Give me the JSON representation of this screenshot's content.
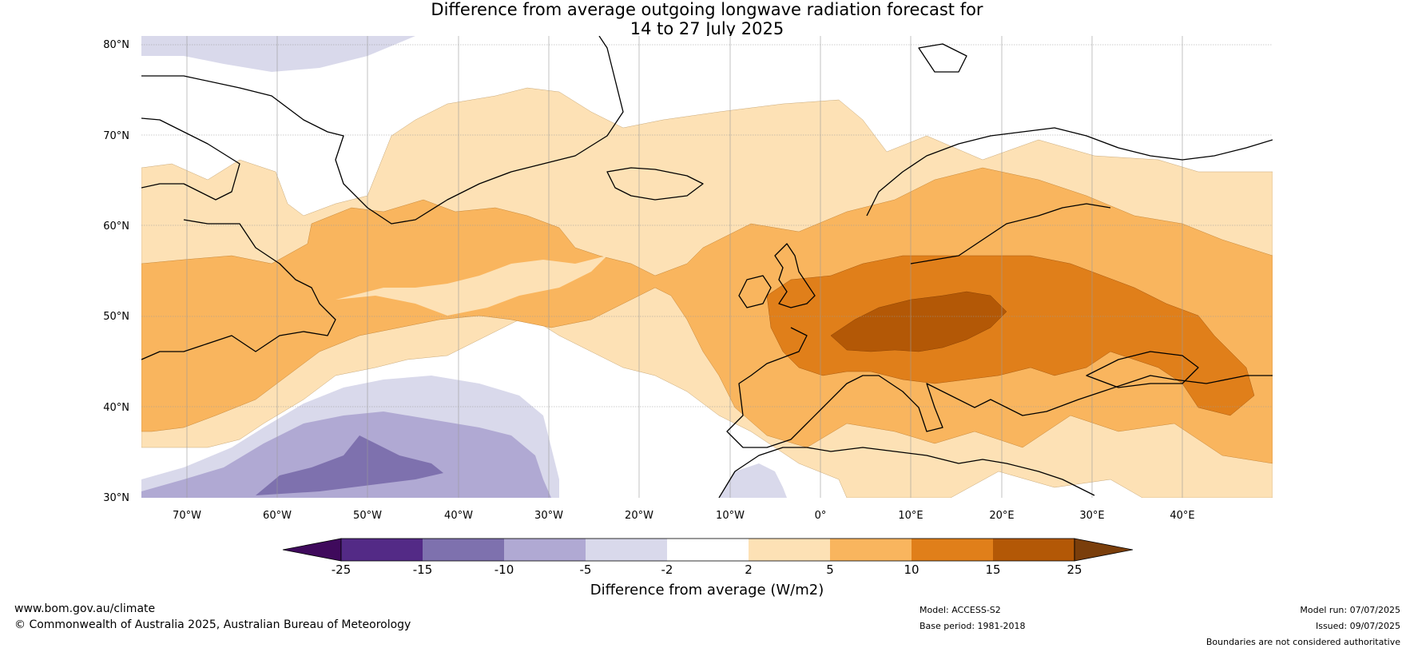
{
  "title": {
    "line1": "Difference from average outgoing longwave radiation forecast for",
    "line2": "14 to 27 July 2025"
  },
  "map": {
    "lon_range": [
      -75,
      50
    ],
    "lat_range": [
      30,
      81
    ],
    "lat_ticks": [
      {
        "value": 80,
        "label": "80°N"
      },
      {
        "value": 70,
        "label": "70°N"
      },
      {
        "value": 60,
        "label": "60°N"
      },
      {
        "value": 50,
        "label": "50°N"
      },
      {
        "value": 40,
        "label": "40°N"
      },
      {
        "value": 30,
        "label": "30°N"
      }
    ],
    "lon_ticks": [
      {
        "value": -70,
        "label": "70°W"
      },
      {
        "value": -60,
        "label": "60°W"
      },
      {
        "value": -50,
        "label": "50°W"
      },
      {
        "value": -40,
        "label": "40°W"
      },
      {
        "value": -30,
        "label": "30°W"
      },
      {
        "value": -20,
        "label": "20°W"
      },
      {
        "value": -10,
        "label": "10°W"
      },
      {
        "value": 0,
        "label": "0°"
      },
      {
        "value": 10,
        "label": "10°E"
      },
      {
        "value": 20,
        "label": "20°E"
      },
      {
        "value": 30,
        "label": "30°E"
      },
      {
        "value": 40,
        "label": "40°E"
      }
    ]
  },
  "colorbar": {
    "ticks": [
      "-25",
      "-15",
      "-10",
      "-5",
      "-2",
      "2",
      "5",
      "10",
      "15",
      "25"
    ],
    "low_extend_color": "#3f0a5c",
    "high_extend_color": "#7a3e0b",
    "bin_colors": [
      "#532a86",
      "#7e71ae",
      "#b0a9d3",
      "#d9d9eb",
      "#ffffff",
      "#fde1b5",
      "#f9b55e",
      "#e07f1a",
      "#b35806"
    ],
    "label": "Difference from average (W/m2)"
  },
  "footer": {
    "url": "www.bom.gov.au/climate",
    "copyright": "© Commonwealth of Australia 2025, Australian Bureau of Meteorology",
    "model": "Model: ACCESS-S2",
    "base_period": "Base period: 1981-2018",
    "model_run": "Model run: 07/07/2025",
    "issued": "Issued: 09/07/2025",
    "disclaimer": "Boundaries are not considered authoritative"
  }
}
